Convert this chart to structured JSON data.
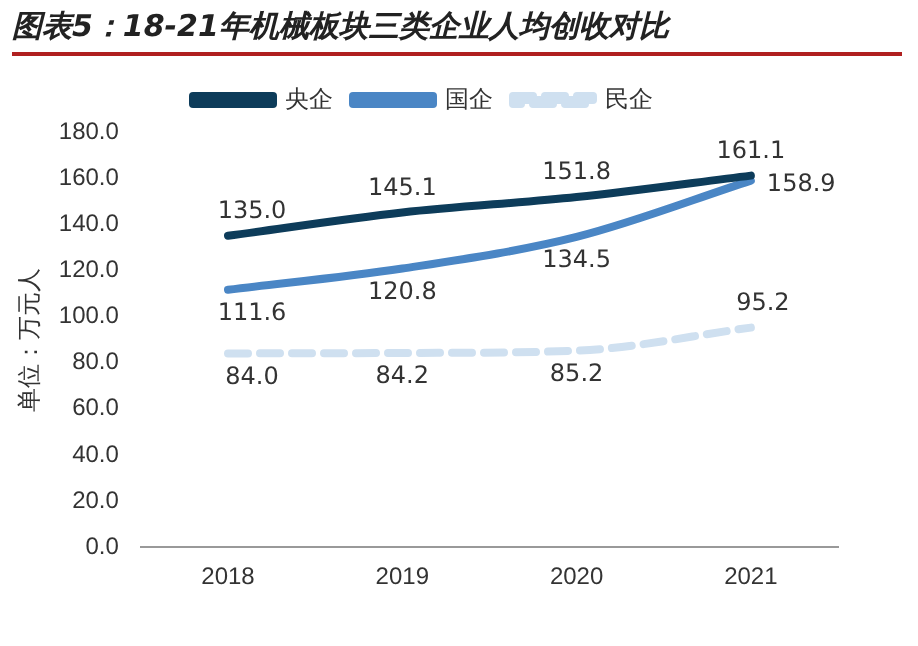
{
  "chart_data": {
    "type": "line",
    "title": "图表5：18-21年机械板块三类企业人均创收对比",
    "ylabel": "单位：万元人",
    "categories": [
      "2018",
      "2019",
      "2020",
      "2021"
    ],
    "series": [
      {
        "name": "央企",
        "color": "#0d3c5a",
        "values": [
          135.0,
          145.1,
          151.8,
          161.1
        ],
        "value_labels": [
          "135.0",
          "145.1",
          "151.8",
          "161.1"
        ],
        "line_style": "solid"
      },
      {
        "name": "国企",
        "color": "#4a86c5",
        "values": [
          111.6,
          120.8,
          134.5,
          158.9
        ],
        "value_labels": [
          "111.6",
          "120.8",
          "134.5",
          "158.9"
        ],
        "line_style": "solid"
      },
      {
        "name": "民企",
        "color": "#cfe0f0",
        "values": [
          84.0,
          84.2,
          85.2,
          95.2
        ],
        "value_labels": [
          "84.0",
          "84.2",
          "85.2",
          "95.2"
        ],
        "line_style": "dashed"
      }
    ],
    "ylim": [
      0,
      180
    ],
    "yticks": [
      {
        "value": 0,
        "label": "0.0"
      },
      {
        "value": 20,
        "label": "20.0"
      },
      {
        "value": 40,
        "label": "40.0"
      },
      {
        "value": 60,
        "label": "60.0"
      },
      {
        "value": 80,
        "label": "80.0"
      },
      {
        "value": 100,
        "label": "100.0"
      },
      {
        "value": 120,
        "label": "120.0"
      },
      {
        "value": 140,
        "label": "140.0"
      },
      {
        "value": 160,
        "label": "160.0"
      },
      {
        "value": 180,
        "label": "180.0"
      }
    ],
    "grid": false,
    "legend": "top",
    "marker": "none"
  }
}
